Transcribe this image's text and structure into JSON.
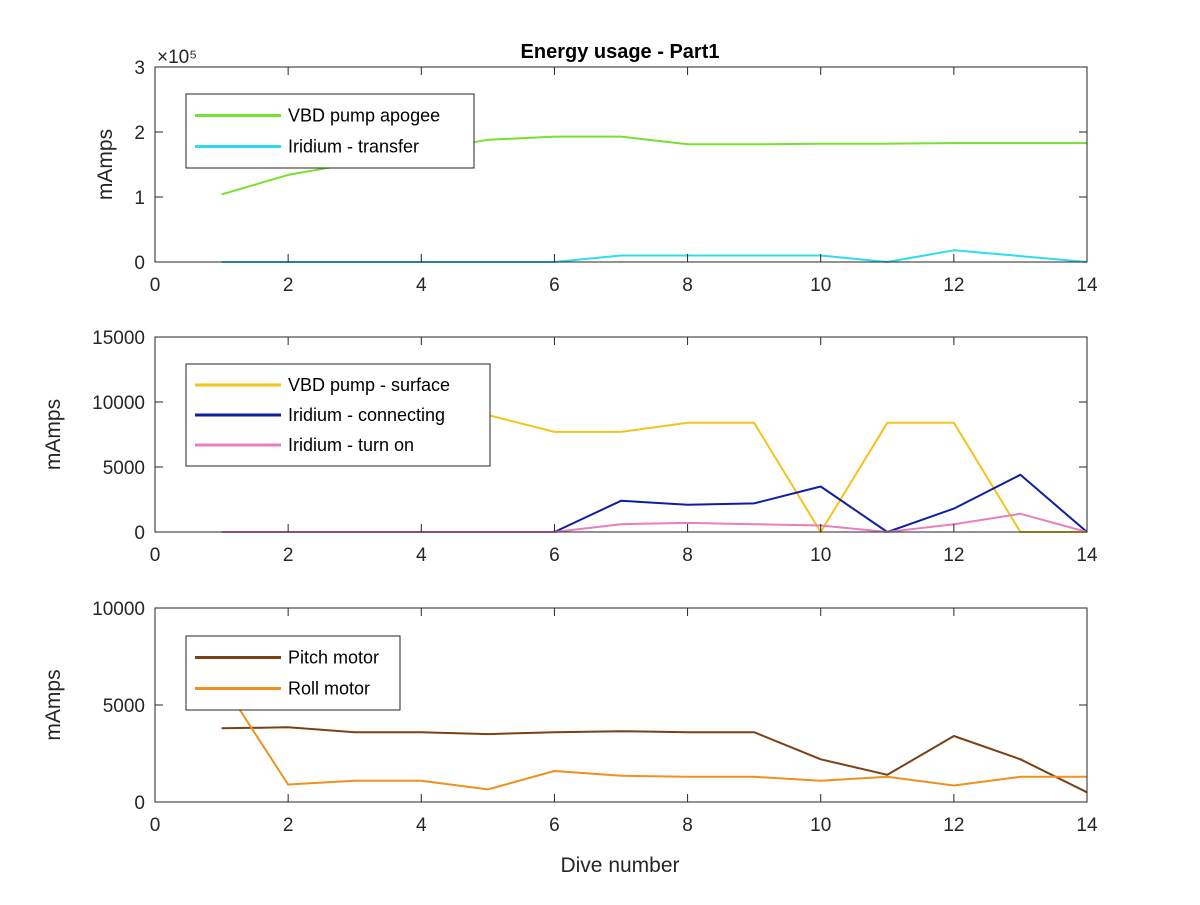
{
  "figure": {
    "title": "Energy usage - Part1",
    "xlabel": "Dive number"
  },
  "chart_data": [
    {
      "type": "line",
      "title": "Energy usage - Part1",
      "xlabel": "",
      "ylabel": "mAmps",
      "xlim": [
        0,
        14
      ],
      "ylim": [
        0,
        300000
      ],
      "xticks": [
        0,
        2,
        4,
        6,
        8,
        10,
        12,
        14
      ],
      "yticks": [
        0,
        100000,
        200000,
        300000
      ],
      "ytick_labels": [
        "0",
        "1",
        "2",
        "3"
      ],
      "exponent_label": "×10⁵",
      "grid": false,
      "legend_position": "top-left",
      "x": [
        1,
        2,
        3,
        4,
        5,
        6,
        7,
        8,
        9,
        10,
        11,
        12,
        13,
        14
      ],
      "series": [
        {
          "name": "VBD pump apogee",
          "color": "#77e030",
          "values": [
            104000,
            134000,
            152000,
            171000,
            188000,
            193000,
            193000,
            181000,
            181000,
            182000,
            182000,
            183000,
            183000,
            183000
          ]
        },
        {
          "name": "Iridium - transfer",
          "color": "#2fdcef",
          "values": [
            0,
            0,
            0,
            0,
            0,
            0,
            10000,
            10000,
            10000,
            10000,
            0,
            18000,
            9000,
            0
          ]
        }
      ]
    },
    {
      "type": "line",
      "xlabel": "",
      "ylabel": "mAmps",
      "xlim": [
        0,
        14
      ],
      "ylim": [
        0,
        15000
      ],
      "xticks": [
        0,
        2,
        4,
        6,
        8,
        10,
        12,
        14
      ],
      "yticks": [
        0,
        5000,
        10000,
        15000
      ],
      "ytick_labels": [
        "0",
        "5000",
        "10000",
        "15000"
      ],
      "grid": false,
      "legend_position": "top-left",
      "x": [
        1,
        2,
        3,
        4,
        5,
        6,
        7,
        8,
        9,
        10,
        11,
        12,
        13,
        14
      ],
      "series": [
        {
          "name": "VBD pump - surface",
          "color": "#f2c41c",
          "values": [
            10400,
            10300,
            10100,
            9900,
            9000,
            7700,
            7700,
            8400,
            8400,
            0,
            8400,
            8400,
            0,
            0
          ]
        },
        {
          "name": "Iridium - connecting",
          "color": "#0f1ea0",
          "values": [
            0,
            0,
            0,
            0,
            0,
            0,
            2400,
            2100,
            2200,
            3500,
            0,
            1800,
            4400,
            0
          ]
        },
        {
          "name": "Iridium - turn on",
          "color": "#e87fc0",
          "values": [
            0,
            0,
            0,
            0,
            0,
            0,
            600,
            700,
            600,
            500,
            0,
            600,
            1400,
            0
          ]
        }
      ]
    },
    {
      "type": "line",
      "xlabel": "Dive number",
      "ylabel": "mAmps",
      "xlim": [
        0,
        14
      ],
      "ylim": [
        0,
        10000
      ],
      "xticks": [
        0,
        2,
        4,
        6,
        8,
        10,
        12,
        14
      ],
      "yticks": [
        0,
        5000,
        10000
      ],
      "ytick_labels": [
        "0",
        "5000",
        "10000"
      ],
      "grid": false,
      "legend_position": "top-left",
      "x": [
        1,
        2,
        3,
        4,
        5,
        6,
        7,
        8,
        9,
        10,
        11,
        12,
        13,
        14
      ],
      "series": [
        {
          "name": "Pitch motor",
          "color": "#7a4116",
          "values": [
            3800,
            3850,
            3600,
            3600,
            3500,
            3600,
            3650,
            3600,
            3600,
            2200,
            1400,
            3400,
            2200,
            500
          ]
        },
        {
          "name": "Roll motor",
          "color": "#f0911e",
          "values": [
            6200,
            900,
            1100,
            1100,
            650,
            1600,
            1350,
            1300,
            1300,
            1100,
            1300,
            850,
            1300,
            1300
          ]
        }
      ]
    }
  ]
}
